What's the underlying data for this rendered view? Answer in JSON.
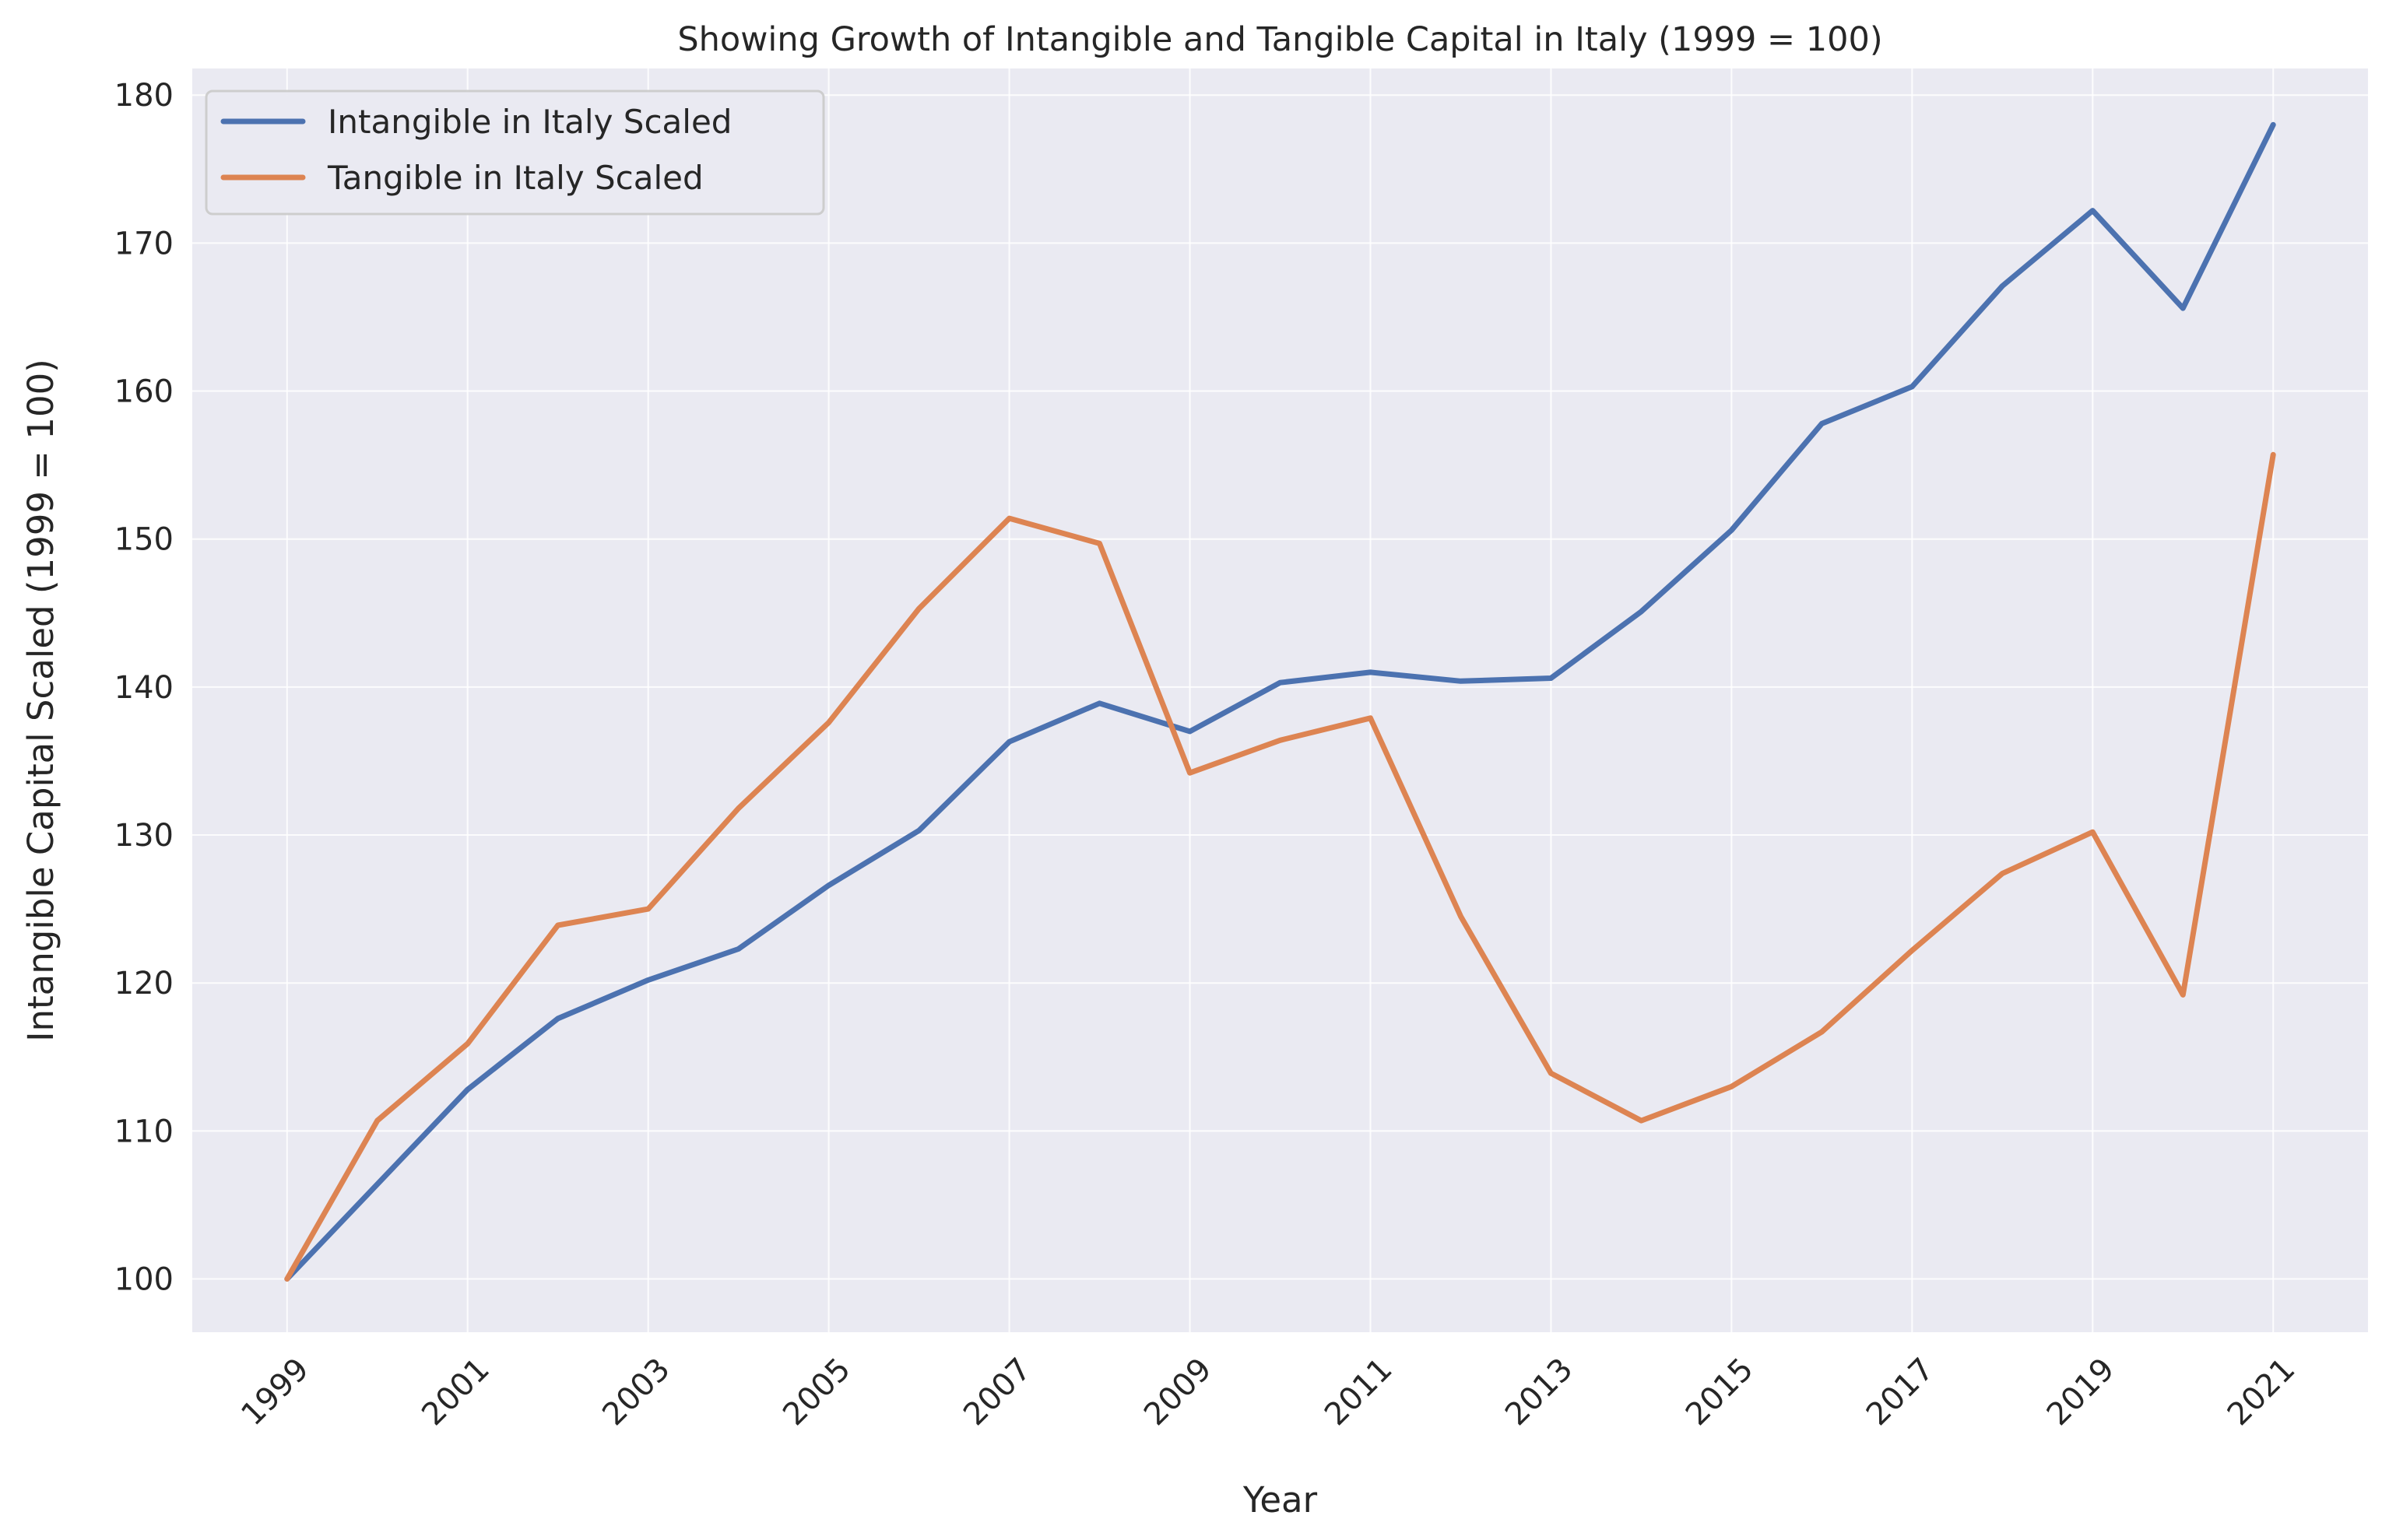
{
  "chart_data": {
    "type": "line",
    "title": "Showing Growth of Intangible and Tangible Capital in Italy (1999 = 100)",
    "xlabel": "Year",
    "ylabel": "Intangible Capital Scaled (1999 = 100)",
    "x": [
      1999,
      2000,
      2001,
      2002,
      2003,
      2004,
      2005,
      2006,
      2007,
      2008,
      2009,
      2010,
      2011,
      2012,
      2013,
      2014,
      2015,
      2016,
      2017,
      2018,
      2019,
      2020,
      2021
    ],
    "xticks": [
      "1999",
      "2001",
      "2003",
      "2005",
      "2007",
      "2009",
      "2011",
      "2013",
      "2015",
      "2017",
      "2019",
      "2021"
    ],
    "yticks": [
      "100",
      "110",
      "120",
      "130",
      "140",
      "150",
      "160",
      "170",
      "180"
    ],
    "xlim": [
      1997.95,
      2022.05
    ],
    "ylim": [
      96.4,
      181.8
    ],
    "grid": true,
    "legend_position": "top-left",
    "background_color": "#eaeaf2",
    "series": [
      {
        "name": "Intangible in Italy Scaled",
        "color": "#4c72b0",
        "values": [
          100,
          106.4,
          112.8,
          117.6,
          120.2,
          122.3,
          126.6,
          130.3,
          136.3,
          138.9,
          137.0,
          140.3,
          141.0,
          140.4,
          140.6,
          145.1,
          150.6,
          157.8,
          160.3,
          167.1,
          172.2,
          165.6,
          178.0
        ]
      },
      {
        "name": "Tangible in Italy Scaled",
        "color": "#dd8452",
        "values": [
          100,
          110.7,
          115.9,
          123.9,
          125.0,
          131.8,
          137.6,
          145.3,
          151.4,
          149.7,
          134.2,
          136.4,
          137.9,
          124.5,
          113.9,
          110.7,
          113.0,
          116.7,
          122.2,
          127.4,
          130.2,
          119.2,
          155.7
        ]
      }
    ]
  }
}
